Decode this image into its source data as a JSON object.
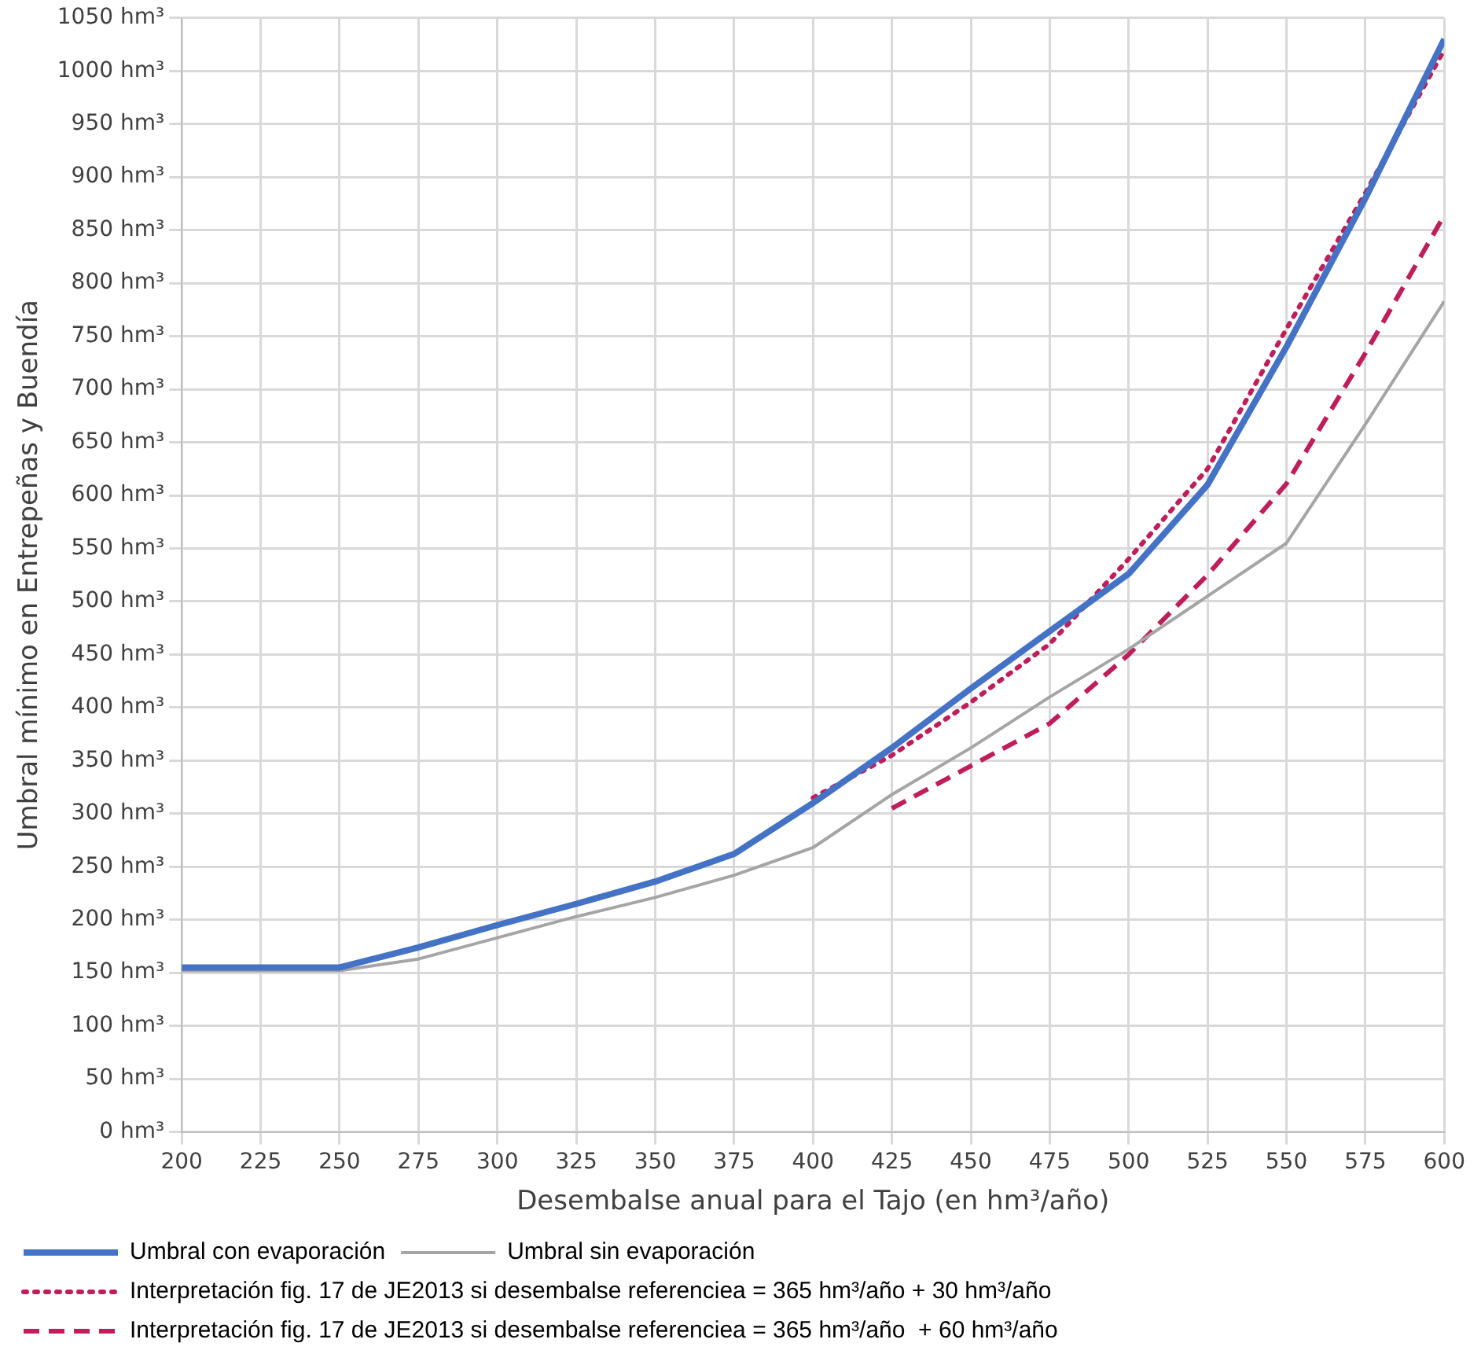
{
  "chart_data": {
    "type": "line",
    "xlabel": "Desembalse anual para el Tajo (en hm³/año)",
    "ylabel": "Umbral mínimo en Entrepeñas y Buendía",
    "x": [
      200,
      225,
      250,
      275,
      300,
      325,
      350,
      375,
      400,
      425,
      450,
      475,
      500,
      525,
      550,
      575,
      600
    ],
    "xlim": [
      200,
      600
    ],
    "xticks": [
      200,
      225,
      250,
      275,
      300,
      325,
      350,
      375,
      400,
      425,
      450,
      475,
      500,
      525,
      550,
      575,
      600
    ],
    "ylim": [
      0,
      1050
    ],
    "yticks": [
      {
        "value": 0,
        "label": "0 hm³"
      },
      {
        "value": 50,
        "label": "50 hm³"
      },
      {
        "value": 100,
        "label": "100 hm³"
      },
      {
        "value": 150,
        "label": "150 hm³"
      },
      {
        "value": 200,
        "label": "200 hm³"
      },
      {
        "value": 250,
        "label": "250 hm³"
      },
      {
        "value": 300,
        "label": "300 hm³"
      },
      {
        "value": 350,
        "label": "350 hm³"
      },
      {
        "value": 400,
        "label": "400 hm³"
      },
      {
        "value": 450,
        "label": "450 hm³"
      },
      {
        "value": 500,
        "label": "500 hm³"
      },
      {
        "value": 550,
        "label": "550 hm³"
      },
      {
        "value": 600,
        "label": "600 hm³"
      },
      {
        "value": 650,
        "label": "650 hm³"
      },
      {
        "value": 700,
        "label": "700 hm³"
      },
      {
        "value": 750,
        "label": "750 hm³"
      },
      {
        "value": 800,
        "label": "800 hm³"
      },
      {
        "value": 850,
        "label": "850 hm³"
      },
      {
        "value": 900,
        "label": "900 hm³"
      },
      {
        "value": 950,
        "label": "950 hm³"
      },
      {
        "value": 1000,
        "label": "1000 hm³"
      },
      {
        "value": 1050,
        "label": "1050 hm³"
      }
    ],
    "grid": true,
    "legend": "bottom",
    "marker": "none",
    "series": [
      {
        "name": "Umbral con evaporación",
        "color": "#4472c4",
        "line_style": "solid",
        "values": [
          155,
          155,
          155,
          174,
          195,
          215,
          236,
          262,
          310,
          362,
          418,
          472,
          526,
          610,
          740,
          880,
          1030
        ]
      },
      {
        "name": "Umbral sin evaporación",
        "color": "#a5a5a5",
        "line_style": "solid",
        "values": [
          152,
          152,
          152,
          163,
          183,
          203,
          221,
          242,
          268,
          318,
          362,
          410,
          455,
          505,
          555,
          667,
          783
        ]
      },
      {
        "name": "Interpretación fig. 17 de JE2013 si desembalse referenciea = 365 hm³/año + 30 hm³/año",
        "color": "#be1e5a",
        "line_style": "dotted",
        "x": [
          400,
          425,
          450,
          475,
          500,
          525,
          550,
          575,
          600
        ],
        "values": [
          315,
          355,
          405,
          460,
          540,
          625,
          757,
          885,
          1020
        ]
      },
      {
        "name": "Interpretación fig. 17 de JE2013 si desembalse referenciea = 365 hm³/año  + 60 hm³/año",
        "color": "#be1e5a",
        "line_style": "dashed",
        "x": [
          425,
          450,
          475,
          500,
          525,
          550,
          575,
          600
        ],
        "values": [
          305,
          345,
          385,
          450,
          525,
          611,
          734,
          864
        ]
      }
    ]
  }
}
